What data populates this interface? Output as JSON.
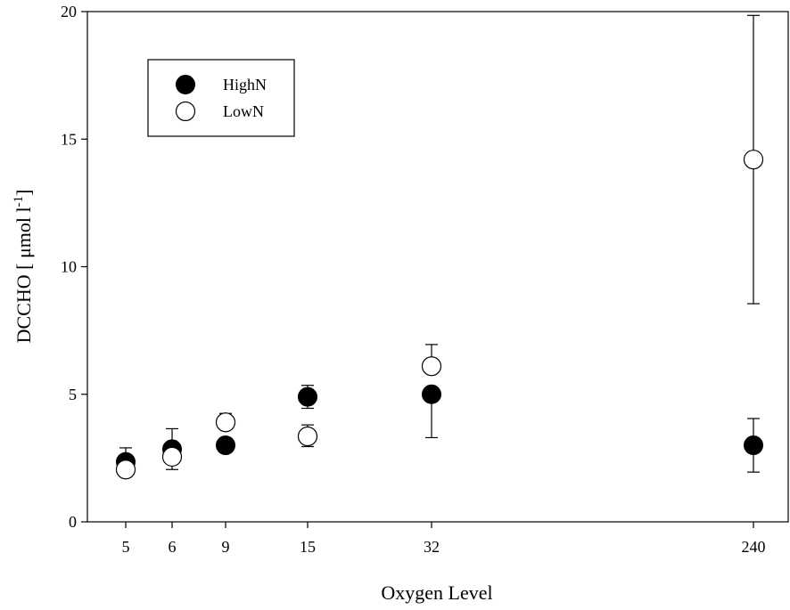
{
  "chart_data": {
    "type": "scatter",
    "xlabel": "Oxygen Level",
    "ylabel_main": "DCCHO [ μmol l",
    "ylabel_sup": "-1",
    "ylabel_close": "]",
    "ylim": [
      0,
      20
    ],
    "y_ticks": [
      "0",
      "5",
      "10",
      "15",
      "20"
    ],
    "x_ticks": [
      "5",
      "6",
      "9",
      "15",
      "32",
      "240"
    ],
    "x_scale": "categorical (unevenly spaced)",
    "grid": false,
    "legend_position": "top-left",
    "series": [
      {
        "name": "HighN",
        "marker": "filled-circle",
        "color": "#000000",
        "points": [
          {
            "x": "5",
            "y": 2.35,
            "err_low": 2.35,
            "err_high": 2.9
          },
          {
            "x": "6",
            "y": 2.85,
            "err_low": 2.85,
            "err_high": 3.65
          },
          {
            "x": "9",
            "y": 3.0,
            "err_low": 3.0,
            "err_high": 3.0
          },
          {
            "x": "15",
            "y": 4.9,
            "err_low": 4.45,
            "err_high": 5.35
          },
          {
            "x": "32",
            "y": 5.0,
            "err_low": 3.3,
            "err_high": 5.0
          },
          {
            "x": "240",
            "y": 3.0,
            "err_low": 1.95,
            "err_high": 4.05
          }
        ]
      },
      {
        "name": "LowN",
        "marker": "open-circle",
        "color": "#000000",
        "points": [
          {
            "x": "5",
            "y": 2.05,
            "err_low": 2.05,
            "err_high": 2.05
          },
          {
            "x": "6",
            "y": 2.55,
            "err_low": 2.05,
            "err_high": 2.55
          },
          {
            "x": "9",
            "y": 3.9,
            "err_low": 3.9,
            "err_high": 4.25
          },
          {
            "x": "15",
            "y": 3.35,
            "err_low": 2.95,
            "err_high": 3.8
          },
          {
            "x": "32",
            "y": 6.1,
            "err_low": 6.1,
            "err_high": 6.95
          },
          {
            "x": "240",
            "y": 14.2,
            "err_low": 8.55,
            "err_high": 19.85
          }
        ]
      }
    ]
  }
}
